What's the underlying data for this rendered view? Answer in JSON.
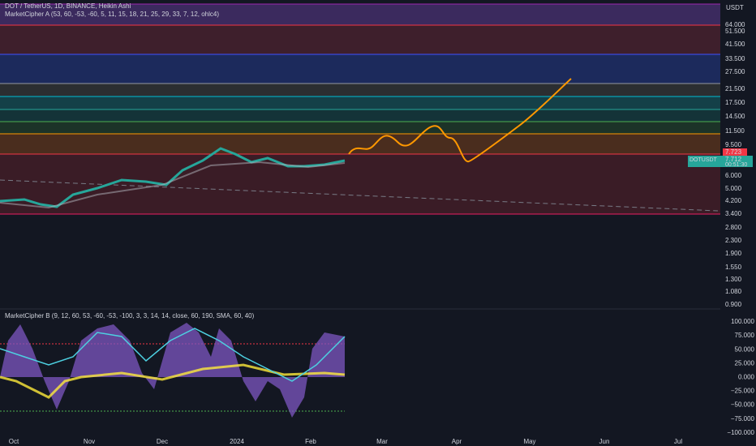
{
  "header": {
    "symbol": "DOT / TetherUS, 1D, BINANCE, Heikin Ashi",
    "indicator_a": "MarketCipher A (53, 60, -53, -60, 5, 11, 15, 18, 21, 25, 29, 33, 7, 12, ohlc4)"
  },
  "price_axis": {
    "currency": "USDT",
    "labels": [
      "64.000",
      "51.500",
      "41.500",
      "33.500",
      "27.500",
      "21.500",
      "17.500",
      "14.500",
      "11.500",
      "9.500",
      "6.000",
      "5.000",
      "4.200",
      "3.400",
      "2.800",
      "2.300",
      "1.900",
      "1.550",
      "1.300",
      "1.080",
      "0.900"
    ],
    "badges": {
      "level": "7.723",
      "last": "7.712",
      "countdown": "00:51:30",
      "symbol": "DOTUSDT"
    }
  },
  "indicator_b": {
    "title": "MarketCipher B (9, 12, 60, 53, -60, -53, -100, 3, 3, 14, 14, close, 60, 190, SMA, 60, 40)",
    "labels": [
      "100.000",
      "75.000",
      "50.000",
      "25.000",
      "0.000",
      "−25.000",
      "−50.000",
      "−75.000",
      "−100.000"
    ]
  },
  "time_axis": {
    "labels": [
      "Oct",
      "Nov",
      "Dec",
      "2024",
      "Feb",
      "Mar",
      "Apr",
      "May",
      "Jun",
      "Jul"
    ]
  }
}
